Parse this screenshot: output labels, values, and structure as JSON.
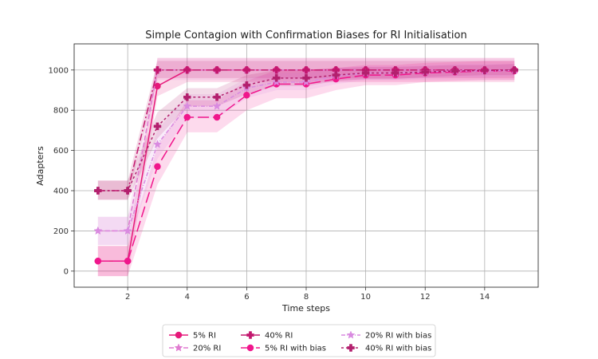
{
  "chart_data": {
    "type": "line",
    "title": "Simple Contagion with Confirmation Biases for RI Initialisation",
    "xlabel": "Time steps",
    "ylabel": "Adapters",
    "xlim": [
      0.2,
      15.8
    ],
    "ylim": [
      -80,
      1130
    ],
    "xticks": [
      2,
      4,
      6,
      8,
      10,
      12,
      14
    ],
    "yticks": [
      0,
      200,
      400,
      600,
      800,
      1000
    ],
    "grid": true,
    "legend_position": "bottom-center",
    "x": [
      1,
      2,
      3,
      4,
      5,
      6,
      7,
      8,
      9,
      10,
      11,
      12,
      13,
      14,
      15
    ],
    "series": [
      {
        "name": "5% RI",
        "color": "#e6197a",
        "dash": "",
        "marker": "circle",
        "values": [
          50,
          50,
          920,
          1000,
          1000,
          1000,
          1000,
          1000,
          1000,
          1000,
          1000,
          1000,
          1000,
          1000,
          1000
        ],
        "band": [
          [
            -25,
            125
          ],
          [
            -25,
            125
          ],
          [
            870,
            1060
          ],
          [
            940,
            1060
          ],
          [
            940,
            1060
          ],
          [
            940,
            1060
          ],
          [
            940,
            1060
          ],
          [
            940,
            1060
          ],
          [
            940,
            1060
          ],
          [
            940,
            1060
          ],
          [
            940,
            1060
          ],
          [
            940,
            1060
          ],
          [
            940,
            1060
          ],
          [
            940,
            1060
          ],
          [
            940,
            1060
          ]
        ]
      },
      {
        "name": "20% RI",
        "color": "#e07ad0",
        "dash": "6,3",
        "marker": "star",
        "values": [
          200,
          200,
          1000,
          1000,
          1000,
          1000,
          1000,
          1000,
          1000,
          1000,
          1000,
          1000,
          1000,
          1000,
          1000
        ],
        "band": [
          [
            130,
            270
          ],
          [
            130,
            270
          ],
          [
            950,
            1060
          ],
          [
            950,
            1060
          ],
          [
            950,
            1060
          ],
          [
            950,
            1060
          ],
          [
            950,
            1060
          ],
          [
            950,
            1060
          ],
          [
            950,
            1060
          ],
          [
            950,
            1060
          ],
          [
            950,
            1060
          ],
          [
            950,
            1060
          ],
          [
            950,
            1060
          ],
          [
            950,
            1060
          ],
          [
            950,
            1060
          ]
        ]
      },
      {
        "name": "40% RI",
        "color": "#c2186e",
        "dash": "9,3,2,3",
        "marker": "plus",
        "values": [
          400,
          400,
          1000,
          1000,
          1000,
          1000,
          1000,
          1000,
          1000,
          1000,
          1000,
          1000,
          1000,
          1000,
          1000
        ],
        "band": [
          [
            355,
            450
          ],
          [
            355,
            450
          ],
          [
            960,
            1045
          ],
          [
            960,
            1045
          ],
          [
            960,
            1045
          ],
          [
            960,
            1045
          ],
          [
            960,
            1045
          ],
          [
            960,
            1045
          ],
          [
            960,
            1045
          ],
          [
            960,
            1045
          ],
          [
            960,
            1045
          ],
          [
            960,
            1045
          ],
          [
            960,
            1045
          ],
          [
            960,
            1045
          ],
          [
            960,
            1045
          ]
        ]
      },
      {
        "name": "5% RI with bias",
        "color": "#f0168c",
        "dash": "14,5",
        "marker": "circle",
        "values": [
          50,
          50,
          520,
          765,
          765,
          875,
          930,
          930,
          955,
          975,
          975,
          985,
          990,
          995,
          995
        ],
        "band": [
          [
            -25,
            125
          ],
          [
            -25,
            125
          ],
          [
            430,
            620
          ],
          [
            690,
            850
          ],
          [
            690,
            850
          ],
          [
            800,
            945
          ],
          [
            860,
            1000
          ],
          [
            860,
            1000
          ],
          [
            900,
            1010
          ],
          [
            925,
            1025
          ],
          [
            925,
            1025
          ],
          [
            940,
            1035
          ],
          [
            945,
            1040
          ],
          [
            950,
            1045
          ],
          [
            950,
            1045
          ]
        ]
      },
      {
        "name": "20% RI with bias",
        "color": "#d98ae0",
        "dash": "5,2,1,2",
        "marker": "star",
        "values": [
          200,
          200,
          630,
          820,
          820,
          910,
          940,
          940,
          970,
          985,
          985,
          990,
          995,
          995,
          998
        ],
        "band": [
          [
            130,
            270
          ],
          [
            130,
            270
          ],
          [
            560,
            700
          ],
          [
            760,
            880
          ],
          [
            760,
            880
          ],
          [
            860,
            960
          ],
          [
            900,
            985
          ],
          [
            900,
            985
          ],
          [
            930,
            1010
          ],
          [
            950,
            1020
          ],
          [
            950,
            1020
          ],
          [
            960,
            1025
          ],
          [
            965,
            1030
          ],
          [
            965,
            1030
          ],
          [
            970,
            1030
          ]
        ]
      },
      {
        "name": "40% RI with bias",
        "color": "#b3206e",
        "dash": "3,3",
        "marker": "plus",
        "values": [
          400,
          400,
          720,
          865,
          865,
          925,
          960,
          960,
          975,
          985,
          985,
          990,
          995,
          998,
          1000
        ],
        "band": [
          [
            355,
            450
          ],
          [
            355,
            450
          ],
          [
            660,
            790
          ],
          [
            820,
            910
          ],
          [
            820,
            910
          ],
          [
            880,
            975
          ],
          [
            920,
            1000
          ],
          [
            920,
            1000
          ],
          [
            945,
            1010
          ],
          [
            955,
            1015
          ],
          [
            955,
            1015
          ],
          [
            965,
            1020
          ],
          [
            970,
            1025
          ],
          [
            975,
            1025
          ],
          [
            975,
            1030
          ]
        ]
      }
    ]
  }
}
